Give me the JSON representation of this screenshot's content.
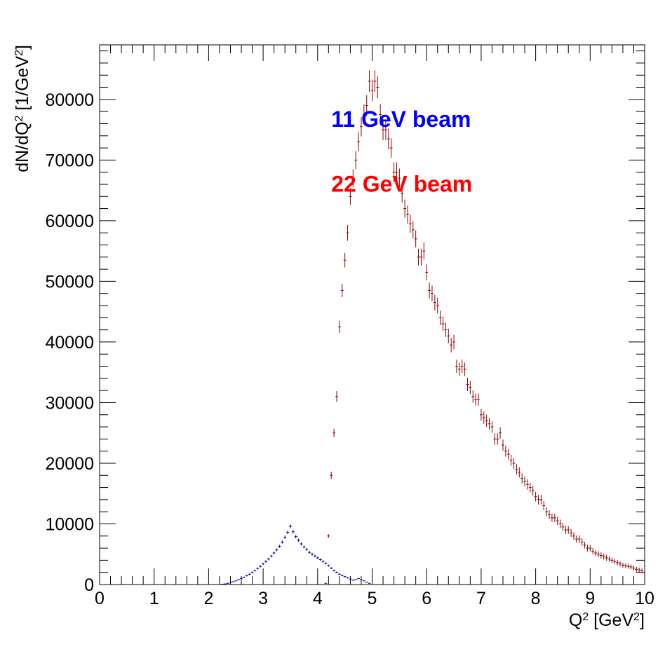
{
  "chart_data": {
    "type": "scatter",
    "title": "",
    "xlabel": {
      "base": "Q",
      "sup": "2",
      "unit_open": " [GeV",
      "unit_sup": "2",
      "unit_close": "]"
    },
    "ylabel": {
      "base1": "dN/dQ",
      "sup1": "2",
      "unit_open": " [1/GeV",
      "unit_sup": "2",
      "unit_close": "]"
    },
    "xlim": [
      0,
      10
    ],
    "ylim": [
      0,
      89000
    ],
    "x_ticks": [
      "0",
      "1",
      "2",
      "3",
      "4",
      "5",
      "6",
      "7",
      "8",
      "9",
      "10"
    ],
    "y_ticks": [
      "0",
      "10000",
      "20000",
      "30000",
      "40000",
      "50000",
      "60000",
      "70000",
      "80000"
    ],
    "grid": false,
    "annotations": [
      {
        "text": "11 GeV beam",
        "color": "#0000ff",
        "x": 4.25,
        "y": 75500
      },
      {
        "text": "22 GeV beam",
        "color": "#ff0000",
        "x": 4.25,
        "y": 64800
      }
    ],
    "series": [
      {
        "color": "#00008b",
        "x": [
          2.25,
          2.3,
          2.35,
          2.4,
          2.45,
          2.5,
          2.55,
          2.6,
          2.65,
          2.7,
          2.75,
          2.8,
          2.85,
          2.9,
          2.95,
          3.0,
          3.05,
          3.1,
          3.15,
          3.2,
          3.25,
          3.3,
          3.35,
          3.4,
          3.45,
          3.5,
          3.55,
          3.6,
          3.65,
          3.7,
          3.75,
          3.8,
          3.85,
          3.9,
          3.95,
          4.0,
          4.05,
          4.1,
          4.15,
          4.2,
          4.25,
          4.3,
          4.35,
          4.4,
          4.45,
          4.5,
          4.55,
          4.6,
          4.65,
          4.7,
          4.75,
          4.8,
          4.85,
          4.9,
          4.95
        ],
        "y": [
          50,
          100,
          200,
          300,
          450,
          600,
          800,
          1000,
          1200,
          1450,
          1700,
          2000,
          2300,
          2650,
          3000,
          3400,
          3800,
          4200,
          4700,
          5200,
          5700,
          6300,
          7000,
          7800,
          8600,
          9600,
          8700,
          7900,
          7300,
          6700,
          6200,
          5800,
          5300,
          5000,
          4700,
          4400,
          4100,
          3800,
          3500,
          3100,
          2700,
          2300,
          2000,
          1700,
          1500,
          1300,
          1100,
          900,
          700,
          800,
          1000,
          800,
          600,
          400,
          200
        ],
        "yerr": [
          40,
          50,
          60,
          70,
          80,
          90,
          100,
          110,
          120,
          130,
          140,
          150,
          160,
          170,
          180,
          190,
          200,
          210,
          220,
          230,
          240,
          250,
          260,
          280,
          300,
          310,
          290,
          280,
          270,
          260,
          250,
          240,
          230,
          220,
          210,
          210,
          200,
          190,
          190,
          180,
          170,
          160,
          150,
          140,
          130,
          120,
          110,
          100,
          90,
          90,
          100,
          90,
          80,
          70,
          50
        ]
      },
      {
        "color": "#8b0000",
        "x": [
          4.15,
          4.2,
          4.25,
          4.3,
          4.35,
          4.4,
          4.45,
          4.5,
          4.55,
          4.6,
          4.65,
          4.7,
          4.75,
          4.8,
          4.85,
          4.9,
          4.95,
          5.0,
          5.05,
          5.1,
          5.15,
          5.2,
          5.25,
          5.3,
          5.35,
          5.4,
          5.45,
          5.5,
          5.55,
          5.6,
          5.65,
          5.7,
          5.75,
          5.8,
          5.85,
          5.9,
          5.95,
          6.0,
          6.05,
          6.1,
          6.15,
          6.2,
          6.25,
          6.3,
          6.35,
          6.4,
          6.45,
          6.5,
          6.55,
          6.6,
          6.65,
          6.7,
          6.75,
          6.8,
          6.85,
          6.9,
          6.95,
          7.0,
          7.05,
          7.1,
          7.15,
          7.2,
          7.25,
          7.3,
          7.35,
          7.4,
          7.45,
          7.5,
          7.55,
          7.6,
          7.65,
          7.7,
          7.75,
          7.8,
          7.85,
          7.9,
          7.95,
          8.0,
          8.05,
          8.1,
          8.15,
          8.2,
          8.25,
          8.3,
          8.35,
          8.4,
          8.45,
          8.5,
          8.55,
          8.6,
          8.65,
          8.7,
          8.75,
          8.8,
          8.85,
          8.9,
          8.95,
          9.0,
          9.05,
          9.1,
          9.15,
          9.2,
          9.25,
          9.3,
          9.35,
          9.4,
          9.45,
          9.5,
          9.55,
          9.6,
          9.65,
          9.7,
          9.75,
          9.8,
          9.85,
          9.9,
          9.95
        ],
        "y": [
          200,
          8000,
          18000,
          25000,
          31000,
          42500,
          48500,
          53500,
          58000,
          64000,
          67000,
          70000,
          73000,
          75500,
          77500,
          79000,
          83000,
          81500,
          83000,
          82000,
          77500,
          75000,
          75000,
          73500,
          72000,
          68000,
          68000,
          67000,
          64500,
          62000,
          61000,
          59500,
          58500,
          57000,
          54000,
          54000,
          55000,
          51500,
          48500,
          48000,
          46500,
          46000,
          44000,
          43000,
          42000,
          41000,
          39500,
          40000,
          36000,
          35500,
          36000,
          35500,
          33000,
          32500,
          31000,
          30500,
          30500,
          28000,
          27500,
          27000,
          26500,
          26000,
          24000,
          24000,
          25000,
          23000,
          22000,
          21500,
          20500,
          20000,
          19000,
          18500,
          17500,
          17000,
          16500,
          16000,
          15500,
          14500,
          14000,
          14000,
          13000,
          12000,
          11500,
          11000,
          11000,
          10500,
          10000,
          9500,
          9000,
          9000,
          8500,
          8000,
          7500,
          7500,
          7000,
          6500,
          6000,
          6000,
          5500,
          5200,
          5000,
          4800,
          4600,
          4400,
          4200,
          4000,
          3800,
          3600,
          3400,
          3200,
          3100,
          3000,
          2900,
          2700,
          2500,
          2400,
          2300
        ],
        "yerr": [
          100,
          300,
          600,
          700,
          900,
          1000,
          1100,
          1200,
          1300,
          1400,
          1500,
          1500,
          1600,
          1600,
          1700,
          1700,
          1800,
          1800,
          1800,
          1800,
          1700,
          1700,
          1700,
          1700,
          1600,
          1600,
          1600,
          1600,
          1500,
          1500,
          1500,
          1500,
          1400,
          1400,
          1400,
          1400,
          1400,
          1300,
          1300,
          1300,
          1300,
          1300,
          1200,
          1200,
          1200,
          1200,
          1200,
          1200,
          1100,
          1100,
          1100,
          1100,
          1100,
          1100,
          1000,
          1000,
          1000,
          1000,
          1000,
          1000,
          950,
          950,
          950,
          950,
          950,
          900,
          900,
          900,
          900,
          900,
          850,
          850,
          850,
          850,
          850,
          800,
          800,
          800,
          800,
          800,
          750,
          750,
          750,
          700,
          700,
          700,
          700,
          650,
          650,
          650,
          650,
          600,
          600,
          600,
          600,
          550,
          550,
          550,
          550,
          500,
          500,
          500,
          500,
          500,
          450,
          450,
          450,
          450,
          450,
          400,
          400,
          400,
          400,
          400,
          400,
          400,
          400
        ]
      }
    ]
  }
}
